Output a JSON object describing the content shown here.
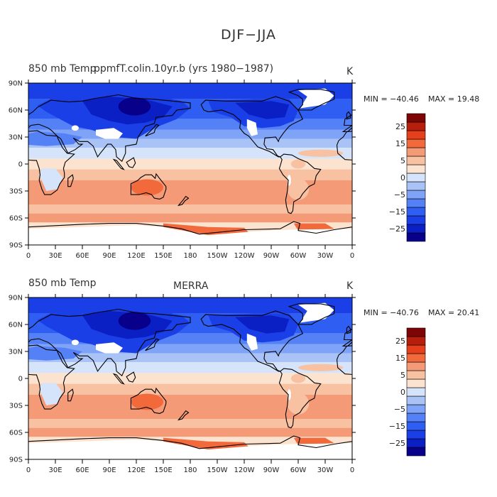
{
  "figure": {
    "title": "DJF−JJA"
  },
  "axes": {
    "lat_ticks": [
      "90N",
      "60N",
      "30N",
      "0",
      "30S",
      "60S",
      "90S"
    ],
    "lon_ticks": [
      "0",
      "30E",
      "60E",
      "90E",
      "120E",
      "150E",
      "180",
      "150W",
      "120W",
      "90W",
      "60W",
      "30W",
      "0"
    ]
  },
  "colorbar": {
    "labels": [
      "25",
      "15",
      "5",
      "0",
      "−5",
      "−15",
      "−25"
    ],
    "levels": [
      -30,
      -25,
      -20,
      -15,
      -10,
      -5,
      -2,
      0,
      2,
      5,
      10,
      15,
      20,
      25,
      30
    ],
    "colors": [
      "#08008a",
      "#0a1fc4",
      "#1a3fe6",
      "#2f5ef2",
      "#5581f7",
      "#7fa3f7",
      "#a9c3f6",
      "#d6e4fb",
      "#fbe3cf",
      "#f8c1a1",
      "#f49a76",
      "#f26a3b",
      "#e5401b",
      "#b81e0c",
      "#7d0505"
    ]
  },
  "panels": [
    {
      "title_left": "850 mb Temp",
      "title_center": "ppmfT.colin.10yr.b (yrs 1980−1987)",
      "units": "K",
      "min_label": "MIN = −40.46",
      "max_label": "MAX =  19.48"
    },
    {
      "title_left": "850 mb Temp",
      "title_center": "MERRA",
      "units": "K",
      "min_label": "MIN = −40.76",
      "max_label": "MAX =  20.41"
    }
  ],
  "colors": {
    "land_outline": "#000000",
    "missing": "#ffffff"
  }
}
